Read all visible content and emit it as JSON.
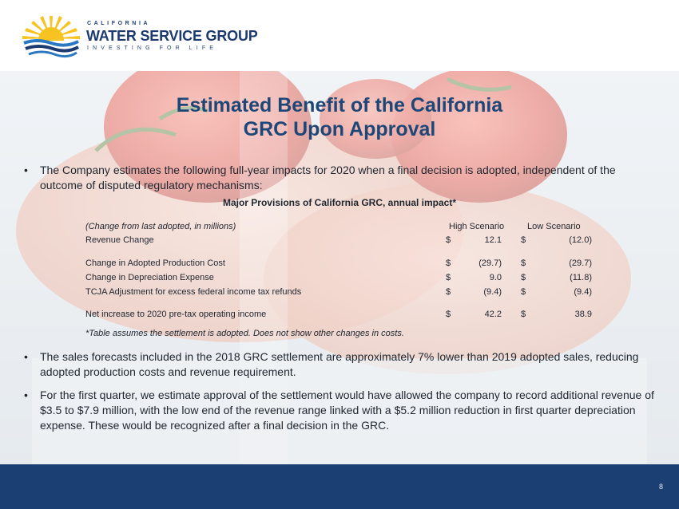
{
  "logo": {
    "top_text": "CALIFORNIA",
    "main_text": "WATER SERVICE GROUP",
    "tagline": "INVESTING FOR LIFE",
    "colors": {
      "sun": "#f6c321",
      "navy": "#1c3a70",
      "wave": "#2b78c2"
    }
  },
  "title": {
    "line1": "Estimated Benefit of the California",
    "line2": "GRC Upon Approval"
  },
  "bullets": [
    "The Company estimates the following full-year impacts for 2020 when a final decision is adopted, independent of the outcome of disputed regulatory mechanisms:",
    "The sales forecasts included in the 2018 GRC settlement are approximately 7% lower than 2019 adopted sales, reducing adopted production costs and revenue requirement.",
    "For the first quarter, we estimate approval of the settlement would have allowed the company to record additional revenue of $3.5 to $7.9 million, with the low end of the revenue range linked with a $5.2 million reduction in first quarter depreciation expense. These would be recognized after a final decision in the GRC."
  ],
  "bullet_symbol": "•",
  "table": {
    "heading": "Major Provisions of California GRC, annual impact*",
    "unit_note": "(Change from last adopted, in millions)",
    "col_high": "High Scenario",
    "col_low": "Low Scenario",
    "currency": "$",
    "rows": [
      {
        "label": "Revenue Change",
        "high": "12.1",
        "low": "(12.0)"
      },
      {
        "label": "Change in Adopted Production Cost",
        "high": "(29.7)",
        "low": "(29.7)"
      },
      {
        "label": "Change in Depreciation Expense",
        "high": "9.0",
        "low": "(11.8)"
      },
      {
        "label": "TCJA Adjustment for excess federal income tax refunds",
        "high": "(9.4)",
        "low": "(9.4)"
      },
      {
        "label": "Net increase to 2020 pre-tax operating income",
        "high": "42.2",
        "low": "38.9"
      }
    ],
    "footnote": "*Table assumes the settlement is adopted.  Does not show other changes in costs."
  },
  "footer": {
    "page_number": "8",
    "color": "#1c3f73"
  }
}
